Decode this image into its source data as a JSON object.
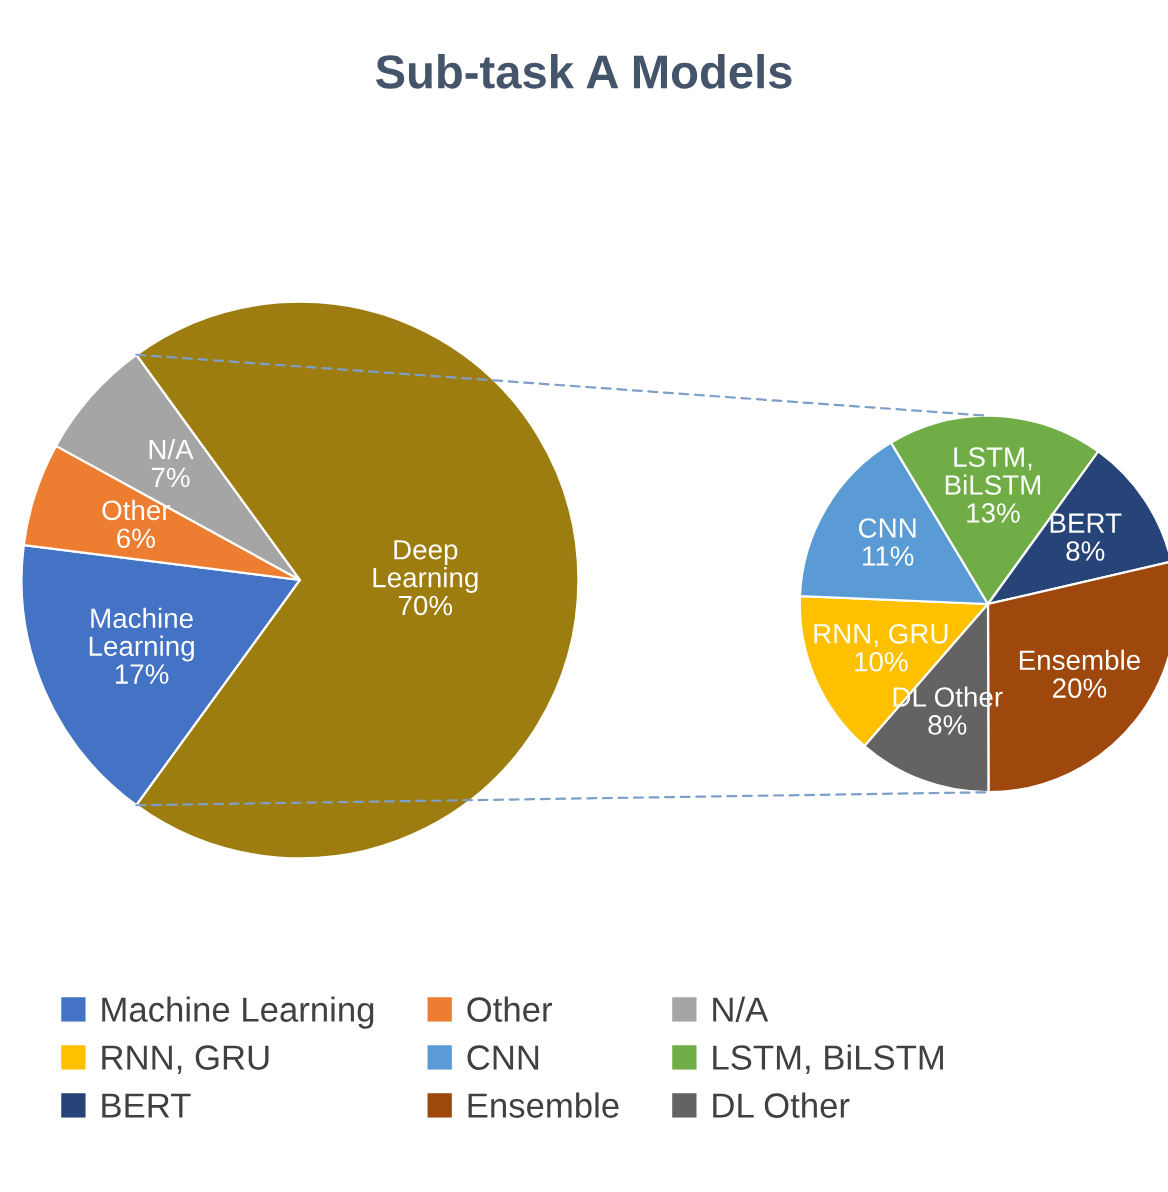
{
  "chart_data": [
    {
      "type": "pie",
      "title": "Sub-task A Models",
      "categories": [
        "Machine Learning",
        "Other",
        "N/A",
        "Deep Learning"
      ],
      "values": [
        17,
        6,
        7,
        70
      ],
      "colors": [
        "#4472c4",
        "#ed7d31",
        "#a5a5a5",
        "#9e7d10"
      ],
      "value_labels": [
        "17%",
        "6%",
        "7%",
        "70%"
      ],
      "legend": "bottom"
    },
    {
      "type": "pie",
      "categories": [
        "RNN, GRU",
        "CNN",
        "LSTM, BiLSTM",
        "BERT",
        "Ensemble",
        "DL Other"
      ],
      "values": [
        10,
        11,
        13,
        8,
        20,
        8
      ],
      "colors": [
        "#ffc000",
        "#5b9bd5",
        "#70ad47",
        "#264478",
        "#9e480e",
        "#636363"
      ],
      "value_labels": [
        "10%",
        "11%",
        "13%",
        "8%",
        "20%",
        "8%"
      ],
      "legend": "bottom"
    }
  ]
}
